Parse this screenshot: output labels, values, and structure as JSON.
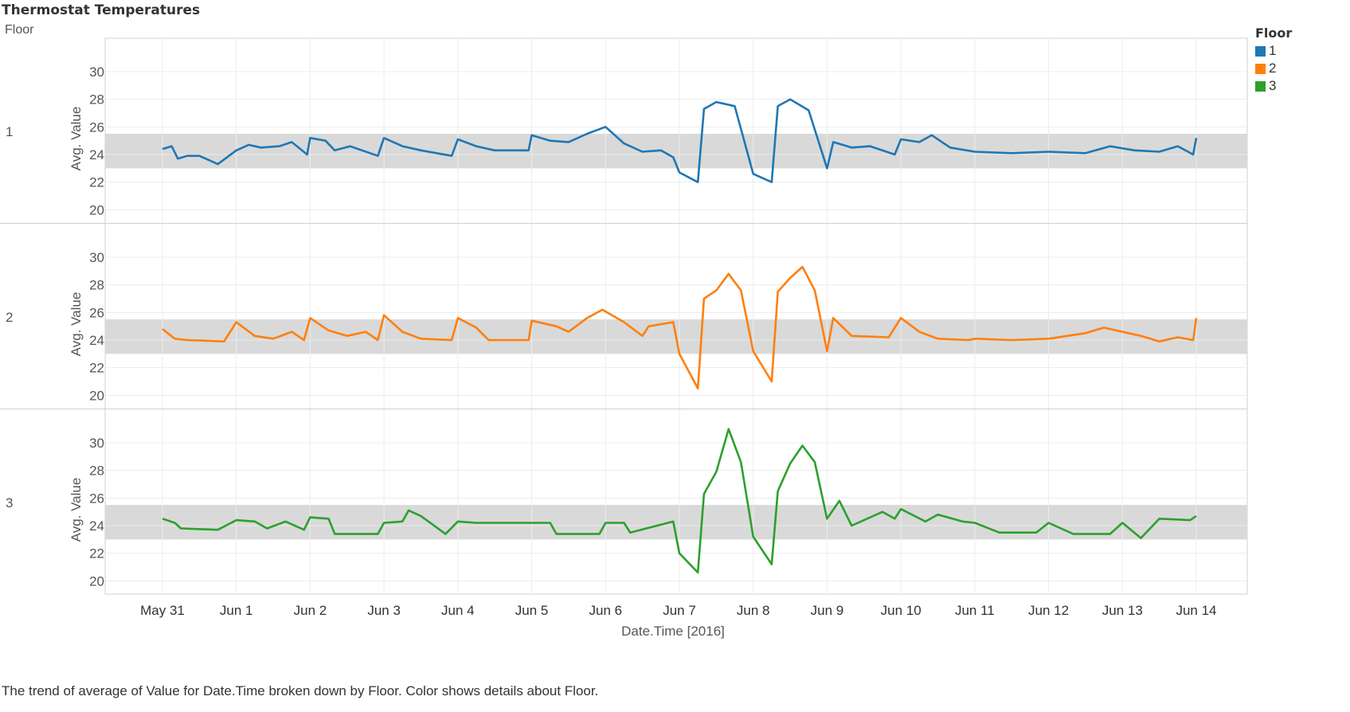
{
  "title": "Thermostat Temperatures",
  "row_header": "Floor",
  "caption": "The trend of average of Value for Date.Time broken down by Floor.  Color shows details about Floor.",
  "legend": {
    "title": "Floor",
    "items": [
      {
        "label": "1",
        "color": "#1f77b4"
      },
      {
        "label": "2",
        "color": "#ff7f0e"
      },
      {
        "label": "3",
        "color": "#2ca02c"
      }
    ]
  },
  "chart_data": {
    "type": "line",
    "title": "Thermostat Temperatures",
    "xlabel": "Date.Time [2016]",
    "ylabel": "Avg. Value",
    "x_ticks": [
      "May 31",
      "Jun 1",
      "Jun 2",
      "Jun 3",
      "Jun 4",
      "Jun 5",
      "Jun 6",
      "Jun 7",
      "Jun 8",
      "Jun 9",
      "Jun 10",
      "Jun 11",
      "Jun 12",
      "Jun 13",
      "Jun 14"
    ],
    "xlim": [
      "2016-05-31",
      "2016-06-14"
    ],
    "y_ticks": [
      20,
      22,
      24,
      26,
      28,
      30
    ],
    "ylim": [
      19.5,
      31.5
    ],
    "grid": true,
    "reference_band": [
      23,
      25.5
    ],
    "series": [
      {
        "name": "1",
        "color": "#1f77b4",
        "points": [
          [
            "2016-05-31T00:00",
            24.4
          ],
          [
            "2016-05-31T03:00",
            24.6
          ],
          [
            "2016-05-31T05:00",
            23.7
          ],
          [
            "2016-05-31T08:00",
            23.9
          ],
          [
            "2016-05-31T12:00",
            23.9
          ],
          [
            "2016-05-31T18:00",
            23.3
          ],
          [
            "2016-06-01T00:00",
            24.3
          ],
          [
            "2016-06-01T04:00",
            24.7
          ],
          [
            "2016-06-01T08:00",
            24.5
          ],
          [
            "2016-06-01T14:00",
            24.6
          ],
          [
            "2016-06-01T18:00",
            24.9
          ],
          [
            "2016-06-01T23:00",
            24.0
          ],
          [
            "2016-06-02T00:00",
            25.2
          ],
          [
            "2016-06-02T05:00",
            25.0
          ],
          [
            "2016-06-02T08:00",
            24.3
          ],
          [
            "2016-06-02T13:00",
            24.6
          ],
          [
            "2016-06-02T22:00",
            23.9
          ],
          [
            "2016-06-03T00:00",
            25.2
          ],
          [
            "2016-06-03T06:00",
            24.6
          ],
          [
            "2016-06-03T12:00",
            24.3
          ],
          [
            "2016-06-03T22:00",
            23.9
          ],
          [
            "2016-06-04T00:00",
            25.1
          ],
          [
            "2016-06-04T06:00",
            24.6
          ],
          [
            "2016-06-04T12:00",
            24.3
          ],
          [
            "2016-06-04T23:00",
            24.3
          ],
          [
            "2016-06-05T00:00",
            25.4
          ],
          [
            "2016-06-05T06:00",
            25.0
          ],
          [
            "2016-06-05T12:00",
            24.9
          ],
          [
            "2016-06-05T18:00",
            25.5
          ],
          [
            "2016-06-06T00:00",
            26.0
          ],
          [
            "2016-06-06T06:00",
            24.8
          ],
          [
            "2016-06-06T12:00",
            24.2
          ],
          [
            "2016-06-06T18:00",
            24.3
          ],
          [
            "2016-06-06T22:00",
            23.8
          ],
          [
            "2016-06-07T00:00",
            22.7
          ],
          [
            "2016-06-07T06:00",
            22.0
          ],
          [
            "2016-06-07T08:00",
            27.3
          ],
          [
            "2016-06-07T12:00",
            27.8
          ],
          [
            "2016-06-07T18:00",
            27.5
          ],
          [
            "2016-06-08T00:00",
            22.6
          ],
          [
            "2016-06-08T06:00",
            22.0
          ],
          [
            "2016-06-08T08:00",
            27.5
          ],
          [
            "2016-06-08T12:00",
            28.0
          ],
          [
            "2016-06-08T18:00",
            27.2
          ],
          [
            "2016-06-09T00:00",
            23.0
          ],
          [
            "2016-06-09T02:00",
            24.9
          ],
          [
            "2016-06-09T08:00",
            24.5
          ],
          [
            "2016-06-09T14:00",
            24.6
          ],
          [
            "2016-06-09T22:00",
            24.0
          ],
          [
            "2016-06-10T00:00",
            25.1
          ],
          [
            "2016-06-10T06:00",
            24.9
          ],
          [
            "2016-06-10T10:00",
            25.4
          ],
          [
            "2016-06-10T16:00",
            24.5
          ],
          [
            "2016-06-11T00:00",
            24.2
          ],
          [
            "2016-06-11T12:00",
            24.1
          ],
          [
            "2016-06-12T00:00",
            24.2
          ],
          [
            "2016-06-12T12:00",
            24.1
          ],
          [
            "2016-06-12T20:00",
            24.6
          ],
          [
            "2016-06-13T04:00",
            24.3
          ],
          [
            "2016-06-13T12:00",
            24.2
          ],
          [
            "2016-06-13T18:00",
            24.6
          ],
          [
            "2016-06-13T23:00",
            24.0
          ],
          [
            "2016-06-14T00:00",
            25.2
          ]
        ]
      },
      {
        "name": "2",
        "color": "#ff7f0e",
        "points": [
          [
            "2016-05-31T00:00",
            24.8
          ],
          [
            "2016-05-31T04:00",
            24.1
          ],
          [
            "2016-05-31T08:00",
            24.0
          ],
          [
            "2016-05-31T20:00",
            23.9
          ],
          [
            "2016-06-01T00:00",
            25.3
          ],
          [
            "2016-06-01T06:00",
            24.3
          ],
          [
            "2016-06-01T12:00",
            24.1
          ],
          [
            "2016-06-01T18:00",
            24.6
          ],
          [
            "2016-06-01T22:00",
            24.0
          ],
          [
            "2016-06-02T00:00",
            25.6
          ],
          [
            "2016-06-02T06:00",
            24.7
          ],
          [
            "2016-06-02T12:00",
            24.3
          ],
          [
            "2016-06-02T18:00",
            24.6
          ],
          [
            "2016-06-02T22:00",
            24.0
          ],
          [
            "2016-06-03T00:00",
            25.8
          ],
          [
            "2016-06-03T06:00",
            24.6
          ],
          [
            "2016-06-03T12:00",
            24.1
          ],
          [
            "2016-06-03T22:00",
            24.0
          ],
          [
            "2016-06-04T00:00",
            25.6
          ],
          [
            "2016-06-04T06:00",
            24.9
          ],
          [
            "2016-06-04T10:00",
            24.0
          ],
          [
            "2016-06-04T23:00",
            24.0
          ],
          [
            "2016-06-05T00:00",
            25.4
          ],
          [
            "2016-06-05T08:00",
            25.0
          ],
          [
            "2016-06-05T12:00",
            24.6
          ],
          [
            "2016-06-05T18:00",
            25.6
          ],
          [
            "2016-06-05T23:00",
            26.2
          ],
          [
            "2016-06-06T06:00",
            25.3
          ],
          [
            "2016-06-06T12:00",
            24.3
          ],
          [
            "2016-06-06T14:00",
            25.0
          ],
          [
            "2016-06-06T22:00",
            25.3
          ],
          [
            "2016-06-07T00:00",
            23.0
          ],
          [
            "2016-06-07T06:00",
            20.5
          ],
          [
            "2016-06-07T08:00",
            27.0
          ],
          [
            "2016-06-07T12:00",
            27.6
          ],
          [
            "2016-06-07T16:00",
            28.8
          ],
          [
            "2016-06-07T20:00",
            27.6
          ],
          [
            "2016-06-08T00:00",
            23.2
          ],
          [
            "2016-06-08T06:00",
            21.0
          ],
          [
            "2016-06-08T08:00",
            27.5
          ],
          [
            "2016-06-08T12:00",
            28.5
          ],
          [
            "2016-06-08T16:00",
            29.3
          ],
          [
            "2016-06-08T20:00",
            27.6
          ],
          [
            "2016-06-09T00:00",
            23.2
          ],
          [
            "2016-06-09T02:00",
            25.6
          ],
          [
            "2016-06-09T08:00",
            24.3
          ],
          [
            "2016-06-09T20:00",
            24.2
          ],
          [
            "2016-06-10T00:00",
            25.6
          ],
          [
            "2016-06-10T06:00",
            24.6
          ],
          [
            "2016-06-10T12:00",
            24.1
          ],
          [
            "2016-06-10T22:00",
            24.0
          ],
          [
            "2016-06-11T00:00",
            24.1
          ],
          [
            "2016-06-11T12:00",
            24.0
          ],
          [
            "2016-06-12T00:00",
            24.1
          ],
          [
            "2016-06-12T12:00",
            24.5
          ],
          [
            "2016-06-12T18:00",
            24.9
          ],
          [
            "2016-06-13T06:00",
            24.3
          ],
          [
            "2016-06-13T12:00",
            23.9
          ],
          [
            "2016-06-13T18:00",
            24.2
          ],
          [
            "2016-06-13T23:00",
            24.0
          ],
          [
            "2016-06-14T00:00",
            25.6
          ]
        ]
      },
      {
        "name": "3",
        "color": "#2ca02c",
        "points": [
          [
            "2016-05-31T00:00",
            24.5
          ],
          [
            "2016-05-31T04:00",
            24.2
          ],
          [
            "2016-05-31T06:00",
            23.8
          ],
          [
            "2016-05-31T18:00",
            23.7
          ],
          [
            "2016-06-01T00:00",
            24.4
          ],
          [
            "2016-06-01T06:00",
            24.3
          ],
          [
            "2016-06-01T10:00",
            23.8
          ],
          [
            "2016-06-01T16:00",
            24.3
          ],
          [
            "2016-06-01T22:00",
            23.7
          ],
          [
            "2016-06-02T00:00",
            24.6
          ],
          [
            "2016-06-02T06:00",
            24.5
          ],
          [
            "2016-06-02T08:00",
            23.4
          ],
          [
            "2016-06-02T22:00",
            23.4
          ],
          [
            "2016-06-03T00:00",
            24.2
          ],
          [
            "2016-06-03T06:00",
            24.3
          ],
          [
            "2016-06-03T08:00",
            25.1
          ],
          [
            "2016-06-03T12:00",
            24.7
          ],
          [
            "2016-06-03T20:00",
            23.4
          ],
          [
            "2016-06-04T00:00",
            24.3
          ],
          [
            "2016-06-04T06:00",
            24.2
          ],
          [
            "2016-06-04T23:00",
            24.2
          ],
          [
            "2016-06-05T00:00",
            24.2
          ],
          [
            "2016-06-05T06:00",
            24.2
          ],
          [
            "2016-06-05T08:00",
            23.4
          ],
          [
            "2016-06-05T22:00",
            23.4
          ],
          [
            "2016-06-06T00:00",
            24.2
          ],
          [
            "2016-06-06T06:00",
            24.2
          ],
          [
            "2016-06-06T08:00",
            23.5
          ],
          [
            "2016-06-06T22:00",
            24.3
          ],
          [
            "2016-06-07T00:00",
            22.0
          ],
          [
            "2016-06-07T06:00",
            20.6
          ],
          [
            "2016-06-07T08:00",
            26.3
          ],
          [
            "2016-06-07T12:00",
            27.9
          ],
          [
            "2016-06-07T16:00",
            31.0
          ],
          [
            "2016-06-07T20:00",
            28.6
          ],
          [
            "2016-06-08T00:00",
            23.2
          ],
          [
            "2016-06-08T06:00",
            21.2
          ],
          [
            "2016-06-08T08:00",
            26.5
          ],
          [
            "2016-06-08T12:00",
            28.5
          ],
          [
            "2016-06-08T16:00",
            29.8
          ],
          [
            "2016-06-08T20:00",
            28.6
          ],
          [
            "2016-06-09T00:00",
            24.5
          ],
          [
            "2016-06-09T04:00",
            25.8
          ],
          [
            "2016-06-09T08:00",
            24.0
          ],
          [
            "2016-06-09T18:00",
            25.0
          ],
          [
            "2016-06-09T22:00",
            24.5
          ],
          [
            "2016-06-10T00:00",
            25.2
          ],
          [
            "2016-06-10T08:00",
            24.3
          ],
          [
            "2016-06-10T12:00",
            24.8
          ],
          [
            "2016-06-10T20:00",
            24.3
          ],
          [
            "2016-06-11T00:00",
            24.2
          ],
          [
            "2016-06-11T08:00",
            23.5
          ],
          [
            "2016-06-11T20:00",
            23.5
          ],
          [
            "2016-06-12T00:00",
            24.2
          ],
          [
            "2016-06-12T08:00",
            23.4
          ],
          [
            "2016-06-12T20:00",
            23.4
          ],
          [
            "2016-06-13T00:00",
            24.2
          ],
          [
            "2016-06-13T06:00",
            23.1
          ],
          [
            "2016-06-13T12:00",
            24.5
          ],
          [
            "2016-06-13T22:00",
            24.4
          ],
          [
            "2016-06-14T00:00",
            24.7
          ]
        ]
      }
    ]
  }
}
